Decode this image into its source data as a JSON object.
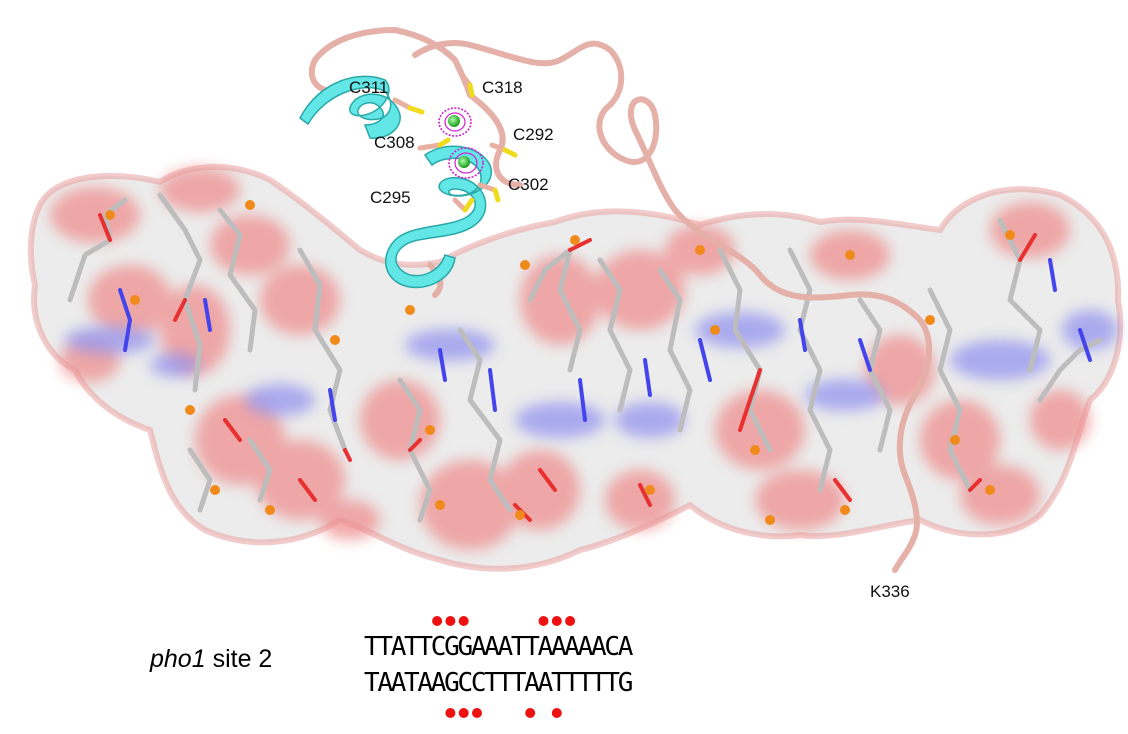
{
  "residue_labels": {
    "c311": "C311",
    "c318": "C318",
    "c308": "C308",
    "c292": "C292",
    "c295": "C295",
    "c302": "C302",
    "k336": "K336"
  },
  "caption": {
    "gene": "pho1",
    "suffix": " site 2"
  },
  "sequence": {
    "top_strand": "TTATTCGGAAATTAAAAACA",
    "bottom_strand": "TAATAAGCCTTTAATTTTTG",
    "top_contact_positions": [
      5,
      6,
      7,
      13,
      14,
      15
    ],
    "bottom_contact_positions": [
      6,
      7,
      8,
      12,
      14
    ],
    "contact_dot_color": "#ee1111"
  },
  "colors": {
    "surface_white": "#ededed",
    "oxygen_red": "#ee8888",
    "nitrogen_blue": "#8f8fee",
    "phosphorus_orange": "#f08a1a",
    "helix_cyan": "#5ee8e8",
    "loop_pink": "#e6b2aa",
    "zinc_green": "#2bc02b",
    "density_magenta": "#cc22cc",
    "sulfur_yellow": "#f2e21e"
  }
}
